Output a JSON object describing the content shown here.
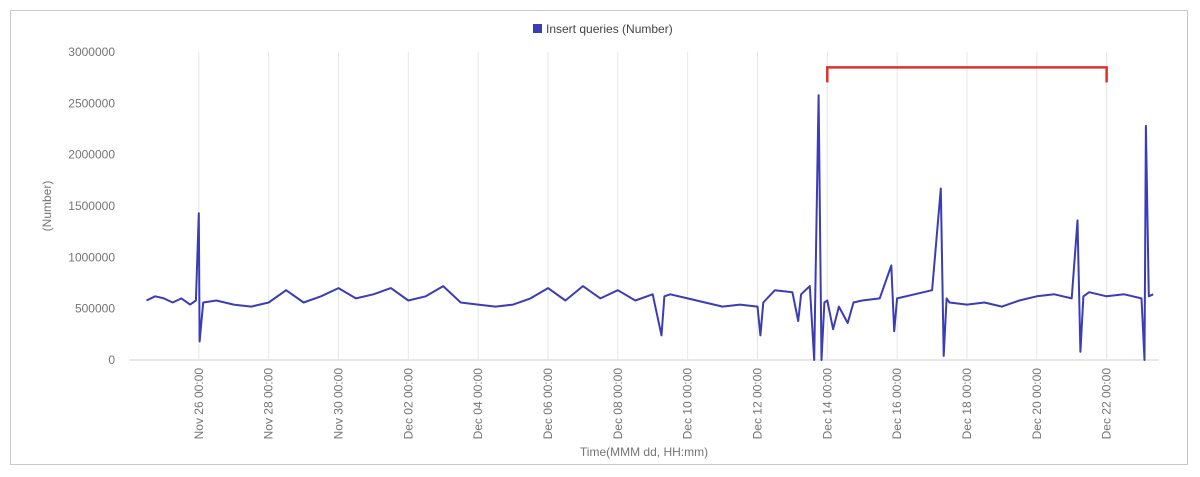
{
  "chart_data": {
    "type": "line",
    "legend": {
      "placement": "top-center",
      "label": "Insert queries (Number)"
    },
    "series": [
      {
        "name": "Insert queries (Number)",
        "color": "#3b3db5",
        "points": [
          [
            "Nov 24 12:00",
            580000
          ],
          [
            "Nov 24 18:00",
            620000
          ],
          [
            "Nov 25 00:00",
            600000
          ],
          [
            "Nov 25 06:00",
            560000
          ],
          [
            "Nov 25 12:00",
            600000
          ],
          [
            "Nov 25 18:00",
            540000
          ],
          [
            "Nov 25 22:00",
            580000
          ],
          [
            "Nov 26 00:00",
            1430000
          ],
          [
            "Nov 26 00:30",
            180000
          ],
          [
            "Nov 26 03:00",
            560000
          ],
          [
            "Nov 26 12:00",
            580000
          ],
          [
            "Nov 27 00:00",
            540000
          ],
          [
            "Nov 27 12:00",
            520000
          ],
          [
            "Nov 28 00:00",
            560000
          ],
          [
            "Nov 28 12:00",
            680000
          ],
          [
            "Nov 29 00:00",
            560000
          ],
          [
            "Nov 29 12:00",
            620000
          ],
          [
            "Nov 30 00:00",
            700000
          ],
          [
            "Nov 30 12:00",
            600000
          ],
          [
            "Dec 01 00:00",
            640000
          ],
          [
            "Dec 01 12:00",
            700000
          ],
          [
            "Dec 02 00:00",
            580000
          ],
          [
            "Dec 02 12:00",
            620000
          ],
          [
            "Dec 03 00:00",
            720000
          ],
          [
            "Dec 03 12:00",
            560000
          ],
          [
            "Dec 04 00:00",
            540000
          ],
          [
            "Dec 04 12:00",
            520000
          ],
          [
            "Dec 05 00:00",
            540000
          ],
          [
            "Dec 05 12:00",
            600000
          ],
          [
            "Dec 06 00:00",
            700000
          ],
          [
            "Dec 06 12:00",
            580000
          ],
          [
            "Dec 07 00:00",
            720000
          ],
          [
            "Dec 07 12:00",
            600000
          ],
          [
            "Dec 08 00:00",
            680000
          ],
          [
            "Dec 08 12:00",
            580000
          ],
          [
            "Dec 09 00:00",
            640000
          ],
          [
            "Dec 09 06:00",
            240000
          ],
          [
            "Dec 09 08:00",
            620000
          ],
          [
            "Dec 09 12:00",
            640000
          ],
          [
            "Dec 10 00:00",
            600000
          ],
          [
            "Dec 10 12:00",
            560000
          ],
          [
            "Dec 11 00:00",
            520000
          ],
          [
            "Dec 11 12:00",
            540000
          ],
          [
            "Dec 12 00:00",
            520000
          ],
          [
            "Dec 12 02:00",
            240000
          ],
          [
            "Dec 12 04:00",
            560000
          ],
          [
            "Dec 12 12:00",
            680000
          ],
          [
            "Dec 13 00:00",
            660000
          ],
          [
            "Dec 13 04:00",
            380000
          ],
          [
            "Dec 13 06:00",
            640000
          ],
          [
            "Dec 13 12:00",
            720000
          ],
          [
            "Dec 13 15:00",
            0
          ],
          [
            "Dec 13 18:00",
            2580000
          ],
          [
            "Dec 13 20:00",
            0
          ],
          [
            "Dec 13 22:00",
            560000
          ],
          [
            "Dec 14 00:00",
            580000
          ],
          [
            "Dec 14 04:00",
            300000
          ],
          [
            "Dec 14 08:00",
            520000
          ],
          [
            "Dec 14 14:00",
            360000
          ],
          [
            "Dec 14 18:00",
            560000
          ],
          [
            "Dec 15 00:00",
            580000
          ],
          [
            "Dec 15 12:00",
            600000
          ],
          [
            "Dec 15 20:00",
            920000
          ],
          [
            "Dec 15 22:00",
            280000
          ],
          [
            "Dec 16 00:00",
            600000
          ],
          [
            "Dec 16 12:00",
            640000
          ],
          [
            "Dec 17 00:00",
            680000
          ],
          [
            "Dec 17 06:00",
            1670000
          ],
          [
            "Dec 17 08:00",
            40000
          ],
          [
            "Dec 17 10:00",
            600000
          ],
          [
            "Dec 17 12:00",
            560000
          ],
          [
            "Dec 18 00:00",
            540000
          ],
          [
            "Dec 18 12:00",
            560000
          ],
          [
            "Dec 19 00:00",
            520000
          ],
          [
            "Dec 19 12:00",
            580000
          ],
          [
            "Dec 20 00:00",
            620000
          ],
          [
            "Dec 20 12:00",
            640000
          ],
          [
            "Dec 21 00:00",
            600000
          ],
          [
            "Dec 21 04:00",
            1360000
          ],
          [
            "Dec 21 06:00",
            80000
          ],
          [
            "Dec 21 08:00",
            620000
          ],
          [
            "Dec 21 12:00",
            660000
          ],
          [
            "Dec 22 00:00",
            620000
          ],
          [
            "Dec 22 12:00",
            640000
          ],
          [
            "Dec 23 00:00",
            600000
          ],
          [
            "Dec 23 02:00",
            0
          ],
          [
            "Dec 23 03:00",
            2280000
          ],
          [
            "Dec 23 05:00",
            620000
          ],
          [
            "Dec 23 08:00",
            640000
          ]
        ]
      }
    ],
    "xlabel": "Time(MMM dd, HH:mm)",
    "ylabel": "(Number)",
    "x_ticks": [
      "Nov 26 00:00",
      "Nov 28 00:00",
      "Nov 30 00:00",
      "Dec 02 00:00",
      "Dec 04 00:00",
      "Dec 06 00:00",
      "Dec 08 00:00",
      "Dec 10 00:00",
      "Dec 12 00:00",
      "Dec 14 00:00",
      "Dec 16 00:00",
      "Dec 18 00:00",
      "Dec 20 00:00",
      "Dec 22 00:00"
    ],
    "y_ticks": [
      "0",
      "500000",
      "1000000",
      "1500000",
      "2000000",
      "2500000",
      "3000000"
    ],
    "ylim": [
      0,
      3000000
    ],
    "xlim": [
      "Nov 24 00:00",
      "Dec 23 12:00"
    ],
    "grid": {
      "vertical": true,
      "horizontal": false
    },
    "annotation": {
      "type": "bracket",
      "color": "#e0302a",
      "from": "Dec 14 00:00",
      "to": "Dec 22 00:00",
      "y": 2850000
    }
  }
}
